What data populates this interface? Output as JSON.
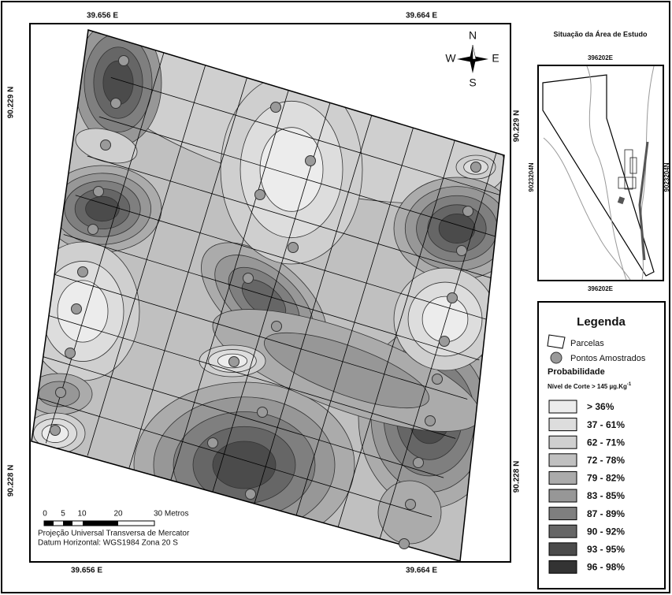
{
  "map": {
    "coordinates": {
      "top": [
        "39.656 E",
        "39.664 E"
      ],
      "bottom": [
        "39.656 E",
        "39.664 E"
      ],
      "left": [
        "90.229 N",
        "90.228 N"
      ],
      "right": [
        "90.229 N",
        "90.228 N"
      ]
    },
    "compass": {
      "north": "N",
      "south": "S",
      "west": "W",
      "east": "E"
    },
    "inset": {
      "title": "Situação da Área de Estudo",
      "x_top": "396202E",
      "x_bottom": "396202E",
      "y_left": "9023204N",
      "y_right": "9023204N"
    },
    "scale_bar": {
      "labels": [
        "0",
        "5",
        "10",
        "20",
        "30 Metros"
      ],
      "projection": "Projeção Universal Transversa de Mercator",
      "datum": "Datum Horizontal: WGS1984 Zona 20 S"
    },
    "legend": {
      "title": "Legenda",
      "parcels": "Parcelas",
      "points": "Pontos Amostrados",
      "probability": "Probabilidade",
      "cutoff": "Nível de Corte > 145 µg.Kg",
      "cutoff_exponent": "-1",
      "classes": [
        {
          "label": "> 36%",
          "color": "#ececec"
        },
        {
          "label": "37 - 61%",
          "color": "#dddddd"
        },
        {
          "label": "62 - 71%",
          "color": "#cfcfcf"
        },
        {
          "label": "72 - 78%",
          "color": "#c0c0c0"
        },
        {
          "label": "79 - 82%",
          "color": "#ababab"
        },
        {
          "label": "83 - 85%",
          "color": "#979797"
        },
        {
          "label": "87 - 89%",
          "color": "#7f7f7f"
        },
        {
          "label": "90 - 92%",
          "color": "#666666"
        },
        {
          "label": "93 - 95%",
          "color": "#4b4b4b"
        },
        {
          "label": "96 - 98%",
          "color": "#333333"
        }
      ]
    }
  }
}
